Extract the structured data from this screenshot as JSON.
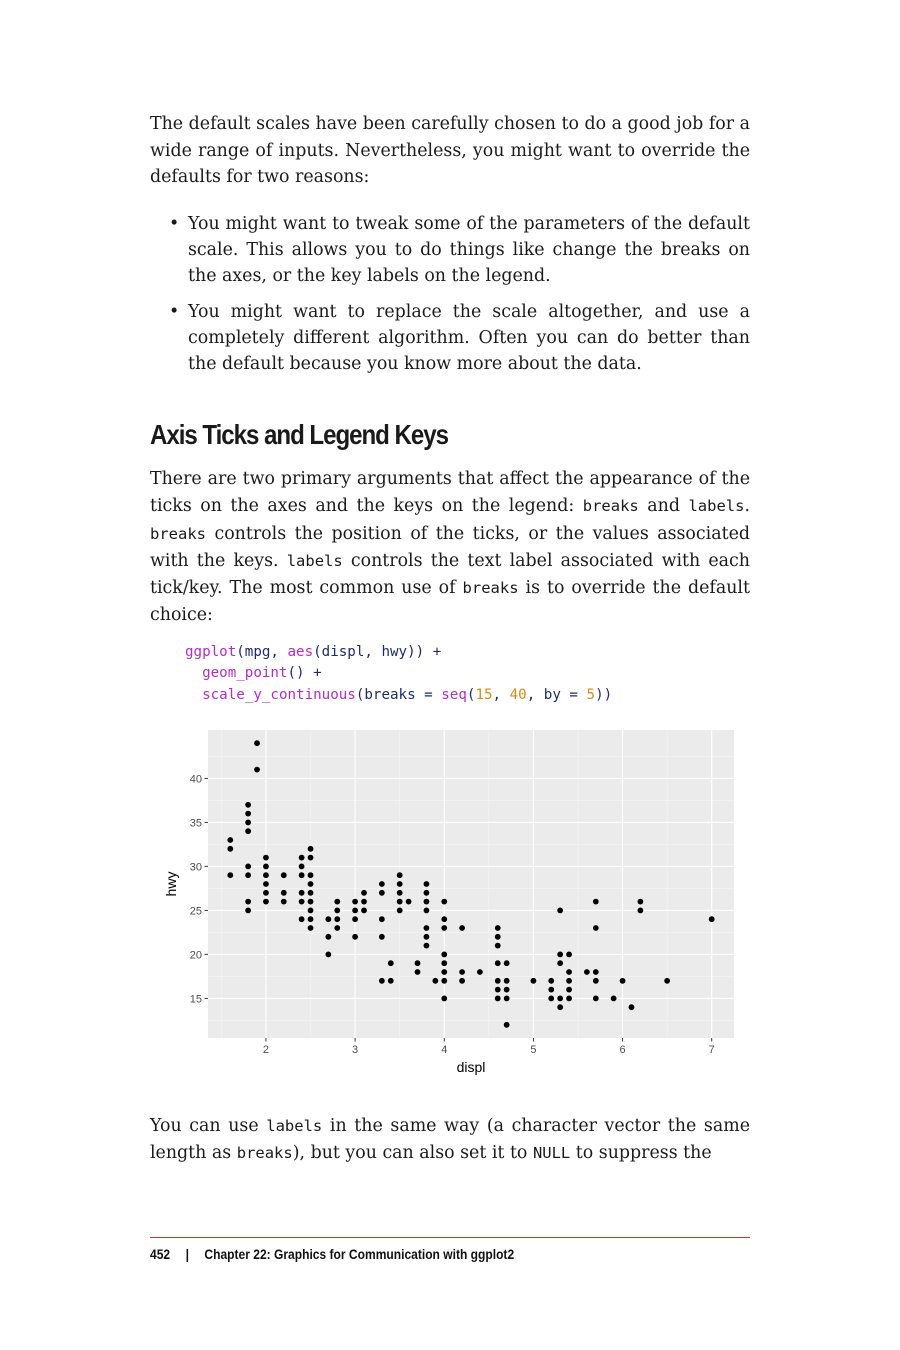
{
  "intro": "The default scales have been carefully chosen to do a good job for a wide range of inputs. Nevertheless, you might want to override the defaults for two reasons:",
  "bullets": [
    "You might want to tweak some of the parameters of the default scale. This allows you to do things like change the breaks on the axes, or the key labels on the legend.",
    "You might want to replace the scale altogether, and use a completely different algorithm. Often you can do better than the default because you know more about the data."
  ],
  "heading": "Axis Ticks and Legend Keys",
  "para2": {
    "t1": "There are two primary arguments that affect the appearance of the ticks on the axes and the keys on the legend: ",
    "c1": "breaks",
    "t2": " and ",
    "c2": "labels",
    "t3": ". ",
    "c3": "breaks",
    "t4": " controls the position of the ticks, or the values associated with the keys. ",
    "c4": "labels",
    "t5": " controls the text label associated with each tick/key. The most common use of ",
    "c5": "breaks",
    "t6": " is to override the default choice:"
  },
  "code": {
    "l1_fn": "ggplot",
    "l1_a": "(mpg, ",
    "l1_fn2": "aes",
    "l1_b": "(displ, hwy)) +",
    "l2_fn": "geom_point",
    "l2_a": "() +",
    "l3_fn": "scale_y_continuous",
    "l3_a": "(breaks = ",
    "l3_fn2": "seq",
    "l3_b": "(",
    "l3_n1": "15",
    "l3_c": ", ",
    "l3_n2": "40",
    "l3_d": ", by = ",
    "l3_n3": "5",
    "l3_e": "))"
  },
  "para3": {
    "t1": "You can use ",
    "c1": "labels",
    "t2": " in the same way (a character vector the same length as ",
    "c2": "breaks",
    "t3": "), but you can also set it to ",
    "c3": "NULL",
    "t4": " to suppress the"
  },
  "footer": {
    "page": "452",
    "sep": "|",
    "chapter": "Chapter 22: Graphics for Communication with ggplot2"
  },
  "chart_data": {
    "type": "scatter",
    "xlabel": "displ",
    "ylabel": "hwy",
    "xlim": [
      1.35,
      7.25
    ],
    "ylim": [
      10.5,
      45.5
    ],
    "x_ticks": [
      2,
      3,
      4,
      5,
      6,
      7
    ],
    "y_ticks": [
      15,
      20,
      25,
      30,
      35,
      40
    ],
    "grid": true,
    "colors": {
      "panel": "#ebebeb",
      "grid_major": "#ffffff",
      "grid_minor": "#f5f5f5",
      "point": "#000000"
    },
    "points": [
      [
        1.6,
        33
      ],
      [
        1.6,
        32
      ],
      [
        1.6,
        29
      ],
      [
        1.8,
        29
      ],
      [
        1.8,
        30
      ],
      [
        1.8,
        26
      ],
      [
        1.8,
        25
      ],
      [
        1.8,
        34
      ],
      [
        1.8,
        35
      ],
      [
        1.8,
        36
      ],
      [
        1.8,
        37
      ],
      [
        1.9,
        44
      ],
      [
        1.9,
        41
      ],
      [
        2.0,
        31
      ],
      [
        2.0,
        30
      ],
      [
        2.0,
        29
      ],
      [
        2.0,
        28
      ],
      [
        2.0,
        27
      ],
      [
        2.0,
        26
      ],
      [
        2.2,
        29
      ],
      [
        2.2,
        27
      ],
      [
        2.2,
        26
      ],
      [
        2.4,
        31
      ],
      [
        2.4,
        30
      ],
      [
        2.4,
        29
      ],
      [
        2.4,
        27
      ],
      [
        2.4,
        26
      ],
      [
        2.4,
        24
      ],
      [
        2.5,
        32
      ],
      [
        2.5,
        31
      ],
      [
        2.5,
        29
      ],
      [
        2.5,
        28
      ],
      [
        2.5,
        27
      ],
      [
        2.5,
        26
      ],
      [
        2.5,
        25
      ],
      [
        2.5,
        24
      ],
      [
        2.5,
        23
      ],
      [
        2.7,
        24
      ],
      [
        2.7,
        22
      ],
      [
        2.7,
        20
      ],
      [
        2.8,
        26
      ],
      [
        2.8,
        25
      ],
      [
        2.8,
        24
      ],
      [
        2.8,
        23
      ],
      [
        3.0,
        26
      ],
      [
        3.0,
        25
      ],
      [
        3.0,
        24
      ],
      [
        3.0,
        22
      ],
      [
        3.1,
        27
      ],
      [
        3.1,
        26
      ],
      [
        3.1,
        25
      ],
      [
        3.3,
        28
      ],
      [
        3.3,
        27
      ],
      [
        3.3,
        24
      ],
      [
        3.3,
        22
      ],
      [
        3.3,
        17
      ],
      [
        3.4,
        19
      ],
      [
        3.4,
        17
      ],
      [
        3.5,
        29
      ],
      [
        3.5,
        28
      ],
      [
        3.5,
        27
      ],
      [
        3.5,
        26
      ],
      [
        3.5,
        25
      ],
      [
        3.6,
        26
      ],
      [
        3.7,
        19
      ],
      [
        3.7,
        18
      ],
      [
        3.8,
        28
      ],
      [
        3.8,
        27
      ],
      [
        3.8,
        26
      ],
      [
        3.8,
        25
      ],
      [
        3.8,
        23
      ],
      [
        3.8,
        22
      ],
      [
        3.8,
        21
      ],
      [
        3.9,
        17
      ],
      [
        4.0,
        26
      ],
      [
        4.0,
        24
      ],
      [
        4.0,
        23
      ],
      [
        4.0,
        20
      ],
      [
        4.0,
        19
      ],
      [
        4.0,
        18
      ],
      [
        4.0,
        17
      ],
      [
        4.0,
        15
      ],
      [
        4.2,
        23
      ],
      [
        4.2,
        18
      ],
      [
        4.2,
        17
      ],
      [
        4.4,
        18
      ],
      [
        4.6,
        23
      ],
      [
        4.6,
        22
      ],
      [
        4.6,
        21
      ],
      [
        4.6,
        19
      ],
      [
        4.6,
        17
      ],
      [
        4.6,
        16
      ],
      [
        4.6,
        15
      ],
      [
        4.7,
        19
      ],
      [
        4.7,
        17
      ],
      [
        4.7,
        16
      ],
      [
        4.7,
        15
      ],
      [
        4.7,
        12
      ],
      [
        5.0,
        17
      ],
      [
        5.2,
        17
      ],
      [
        5.2,
        16
      ],
      [
        5.2,
        15
      ],
      [
        5.3,
        25
      ],
      [
        5.3,
        20
      ],
      [
        5.3,
        19
      ],
      [
        5.3,
        15
      ],
      [
        5.3,
        14
      ],
      [
        5.4,
        20
      ],
      [
        5.4,
        18
      ],
      [
        5.4,
        17
      ],
      [
        5.4,
        16
      ],
      [
        5.4,
        15
      ],
      [
        5.6,
        18
      ],
      [
        5.7,
        26
      ],
      [
        5.7,
        23
      ],
      [
        5.7,
        18
      ],
      [
        5.7,
        17
      ],
      [
        5.7,
        15
      ],
      [
        5.9,
        15
      ],
      [
        6.0,
        17
      ],
      [
        6.1,
        14
      ],
      [
        6.2,
        26
      ],
      [
        6.2,
        25
      ],
      [
        6.5,
        17
      ],
      [
        7.0,
        24
      ]
    ]
  }
}
